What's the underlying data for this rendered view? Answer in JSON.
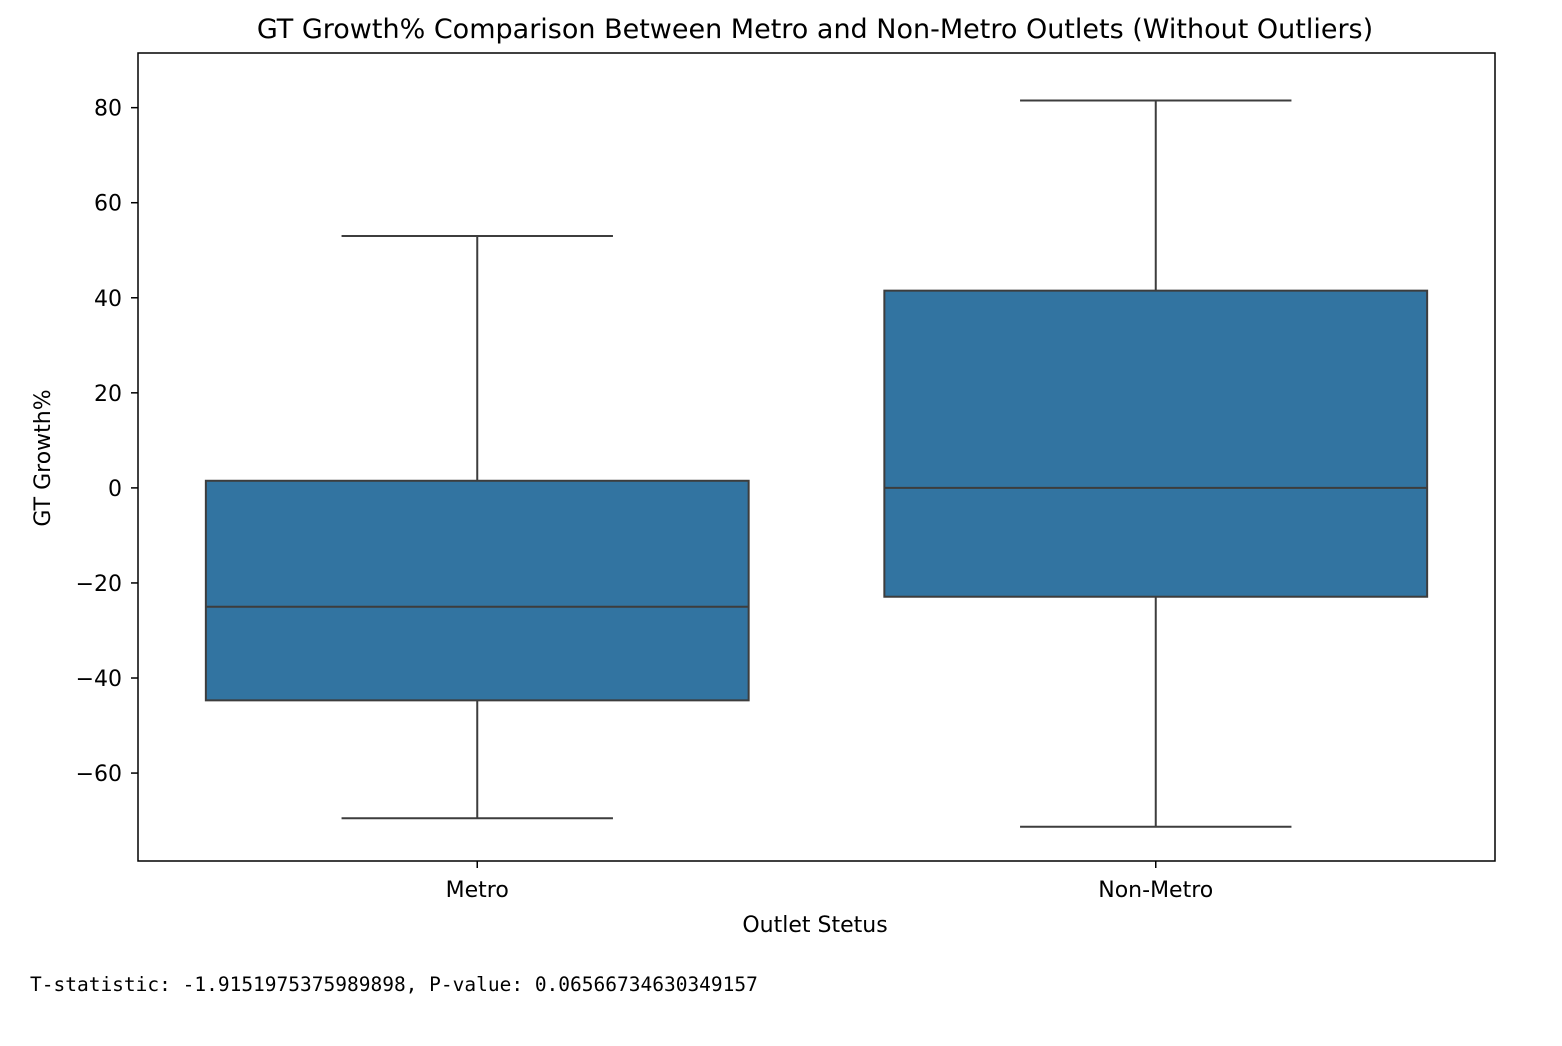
{
  "chart_data": {
    "type": "box",
    "title": "GT Growth% Comparison Between Metro and Non-Metro Outlets (Without Outliers)",
    "xlabel": "Outlet Stetus",
    "ylabel": "GT Growth%",
    "categories": [
      "Metro",
      "Non-Metro"
    ],
    "boxes": [
      {
        "category": "Metro",
        "whisker_low": -69.5,
        "q1": -44.7,
        "median": -25.0,
        "q3": 1.5,
        "whisker_high": 53.0
      },
      {
        "category": "Non-Metro",
        "whisker_low": -71.3,
        "q1": -22.9,
        "median": 0.0,
        "q3": 41.5,
        "whisker_high": 81.5
      }
    ],
    "yticks": [
      80,
      60,
      40,
      20,
      0,
      -20,
      -40,
      -60
    ],
    "ytick_labels": [
      "80",
      "60",
      "40",
      "20",
      "0",
      "−20",
      "−40",
      "−60"
    ],
    "ylim": [
      -78.5,
      91.5
    ],
    "grid": false,
    "colors": {
      "box_fill": "#3274a1",
      "line": "#3d3d3d",
      "frame": "#000000"
    }
  },
  "output": {
    "stat_line": "T-statistic: -1.9151975375989898, P-value: 0.06566734630349157"
  }
}
